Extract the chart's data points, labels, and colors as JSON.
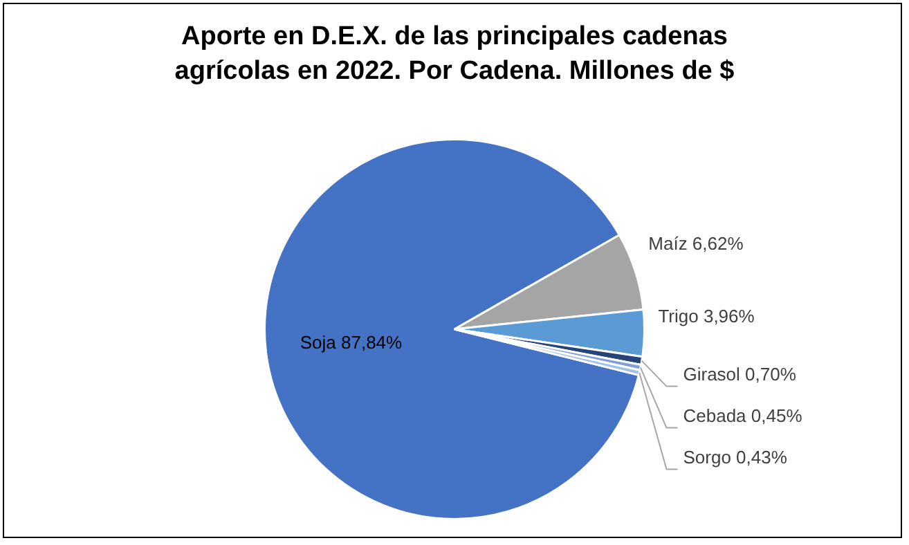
{
  "chart_data": {
    "type": "pie",
    "title": "Aporte en D.E.X. de las principales cadenas agrícolas en 2022. Por Cadena. Millones de $",
    "categories": [
      "Soja",
      "Maíz",
      "Trigo",
      "Girasol",
      "Cebada",
      "Sorgo"
    ],
    "values": [
      87.84,
      6.62,
      3.96,
      0.7,
      0.45,
      0.43
    ],
    "value_labels": [
      "87,84%",
      "6,62%",
      "3,96%",
      "0,70%",
      "0,45%",
      "0,43%"
    ],
    "colors": [
      "#4472c4",
      "#a5a5a5",
      "#5b9bd5",
      "#264478",
      "#7f9fd6",
      "#9dc3e6"
    ],
    "legend": false
  }
}
